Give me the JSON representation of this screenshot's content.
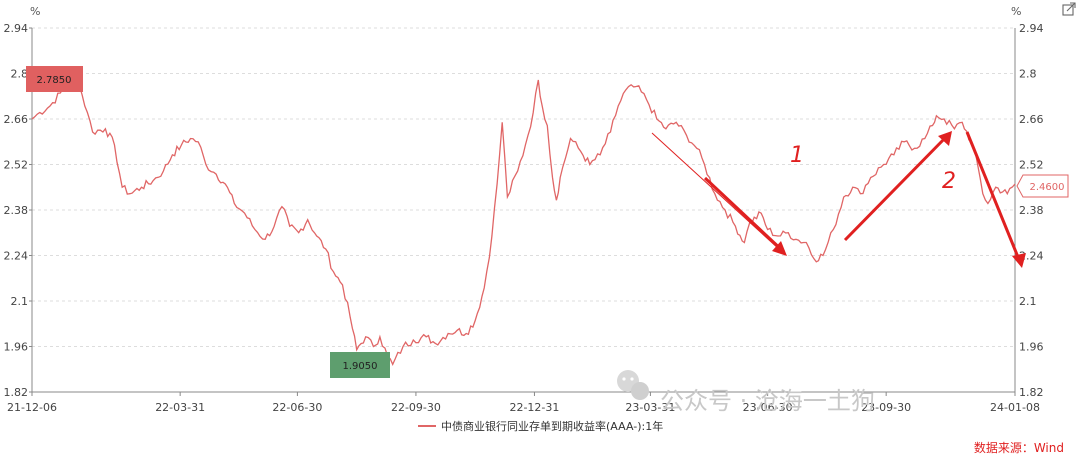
{
  "chart_data": {
    "type": "line",
    "y_unit": "%",
    "ylim": [
      1.82,
      2.94
    ],
    "y_ticks": [
      "2.94",
      "2.8",
      "2.66",
      "2.52",
      "2.38",
      "2.24",
      "2.1",
      "1.96",
      "1.82"
    ],
    "x_ticks": [
      "21-12-06",
      "22-03-31",
      "22-06-30",
      "22-09-30",
      "22-12-31",
      "23-03-31",
      "23-06-30",
      "23-09-30",
      "24-01-08"
    ],
    "grid": true,
    "legend_position": "bottom",
    "series": [
      {
        "name": "中债商业银行同业存单到期收益率(AAA-):1年",
        "color": "#e06666",
        "points": [
          [
            "2021-12-06",
            2.66
          ],
          [
            "2021-12-12",
            2.68
          ],
          [
            "2021-12-20",
            2.7
          ],
          [
            "2021-12-28",
            2.74
          ],
          [
            "2022-01-06",
            2.785
          ],
          [
            "2022-01-12",
            2.76
          ],
          [
            "2022-01-18",
            2.68
          ],
          [
            "2022-01-22",
            2.62
          ],
          [
            "2022-02-01",
            2.63
          ],
          [
            "2022-02-08",
            2.58
          ],
          [
            "2022-02-14",
            2.45
          ],
          [
            "2022-02-20",
            2.43
          ],
          [
            "2022-03-01",
            2.45
          ],
          [
            "2022-03-10",
            2.47
          ],
          [
            "2022-03-18",
            2.5
          ],
          [
            "2022-03-25",
            2.55
          ],
          [
            "2022-04-01",
            2.58
          ],
          [
            "2022-04-08",
            2.6
          ],
          [
            "2022-04-14",
            2.59
          ],
          [
            "2022-04-20",
            2.52
          ],
          [
            "2022-04-28",
            2.49
          ],
          [
            "2022-05-05",
            2.46
          ],
          [
            "2022-05-12",
            2.4
          ],
          [
            "2022-05-20",
            2.37
          ],
          [
            "2022-05-28",
            2.32
          ],
          [
            "2022-06-05",
            2.29
          ],
          [
            "2022-06-12",
            2.33
          ],
          [
            "2022-06-18",
            2.39
          ],
          [
            "2022-06-24",
            2.33
          ],
          [
            "2022-07-01",
            2.31
          ],
          [
            "2022-07-08",
            2.35
          ],
          [
            "2022-07-15",
            2.3
          ],
          [
            "2022-07-22",
            2.26
          ],
          [
            "2022-07-28",
            2.19
          ],
          [
            "2022-08-04",
            2.15
          ],
          [
            "2022-08-10",
            2.05
          ],
          [
            "2022-08-15",
            1.95
          ],
          [
            "2022-08-22",
            1.99
          ],
          [
            "2022-08-28",
            1.96
          ],
          [
            "2022-09-02",
            1.99
          ],
          [
            "2022-09-08",
            1.93
          ],
          [
            "2022-09-12",
            1.905
          ],
          [
            "2022-09-20",
            1.96
          ],
          [
            "2022-09-28",
            1.98
          ],
          [
            "2022-10-08",
            1.99
          ],
          [
            "2022-10-15",
            1.97
          ],
          [
            "2022-10-25",
            2.0
          ],
          [
            "2022-11-01",
            2.01
          ],
          [
            "2022-11-08",
            2.0
          ],
          [
            "2022-11-15",
            2.04
          ],
          [
            "2022-11-22",
            2.14
          ],
          [
            "2022-11-28",
            2.3
          ],
          [
            "2022-12-02",
            2.46
          ],
          [
            "2022-12-06",
            2.65
          ],
          [
            "2022-12-10",
            2.42
          ],
          [
            "2022-12-18",
            2.5
          ],
          [
            "2022-12-24",
            2.58
          ],
          [
            "2022-12-30",
            2.68
          ],
          [
            "2023-01-03",
            2.78
          ],
          [
            "2023-01-06",
            2.7
          ],
          [
            "2023-01-10",
            2.64
          ],
          [
            "2023-01-14",
            2.48
          ],
          [
            "2023-01-17",
            2.41
          ],
          [
            "2023-01-20",
            2.48
          ],
          [
            "2023-01-28",
            2.6
          ],
          [
            "2023-02-05",
            2.56
          ],
          [
            "2023-02-12",
            2.52
          ],
          [
            "2023-02-20",
            2.55
          ],
          [
            "2023-02-28",
            2.62
          ],
          [
            "2023-03-06",
            2.7
          ],
          [
            "2023-03-12",
            2.75
          ],
          [
            "2023-03-20",
            2.76
          ],
          [
            "2023-03-28",
            2.72
          ],
          [
            "2023-04-05",
            2.66
          ],
          [
            "2023-04-12",
            2.63
          ],
          [
            "2023-04-20",
            2.65
          ],
          [
            "2023-04-28",
            2.61
          ],
          [
            "2023-05-06",
            2.57
          ],
          [
            "2023-05-12",
            2.52
          ],
          [
            "2023-05-20",
            2.43
          ],
          [
            "2023-05-28",
            2.38
          ],
          [
            "2023-06-05",
            2.33
          ],
          [
            "2023-06-12",
            2.28
          ],
          [
            "2023-06-16",
            2.34
          ],
          [
            "2023-06-25",
            2.37
          ],
          [
            "2023-06-30",
            2.32
          ],
          [
            "2023-07-08",
            2.3
          ],
          [
            "2023-07-16",
            2.31
          ],
          [
            "2023-07-22",
            2.29
          ],
          [
            "2023-07-30",
            2.28
          ],
          [
            "2023-08-05",
            2.23
          ],
          [
            "2023-08-12",
            2.24
          ],
          [
            "2023-08-20",
            2.32
          ],
          [
            "2023-08-28",
            2.42
          ],
          [
            "2023-09-04",
            2.45
          ],
          [
            "2023-09-10",
            2.43
          ],
          [
            "2023-09-18",
            2.48
          ],
          [
            "2023-09-28",
            2.52
          ],
          [
            "2023-10-06",
            2.55
          ],
          [
            "2023-10-14",
            2.59
          ],
          [
            "2023-10-22",
            2.57
          ],
          [
            "2023-10-30",
            2.6
          ],
          [
            "2023-11-05",
            2.64
          ],
          [
            "2023-11-08",
            2.67
          ],
          [
            "2023-11-14",
            2.66
          ],
          [
            "2023-11-22",
            2.63
          ],
          [
            "2023-11-28",
            2.65
          ],
          [
            "2023-12-05",
            2.59
          ],
          [
            "2023-12-10",
            2.52
          ],
          [
            "2023-12-14",
            2.43
          ],
          [
            "2023-12-18",
            2.4
          ],
          [
            "2023-12-24",
            2.45
          ],
          [
            "2024-01-02",
            2.43
          ],
          [
            "2024-01-08",
            2.46
          ]
        ]
      }
    ],
    "annotations": {
      "max_label": "2.7850",
      "min_label": "1.9050",
      "last_label": "2.4600",
      "max_color": "#e06060",
      "min_color": "#5e9e6e"
    }
  },
  "overlay": {
    "mark1": "1",
    "mark2": "2",
    "watermark": "公众号 · 沧海一土狗",
    "arrow_color": "#e02020"
  },
  "source_text": "数据来源：Wind",
  "expand_icon": "external-link-icon"
}
